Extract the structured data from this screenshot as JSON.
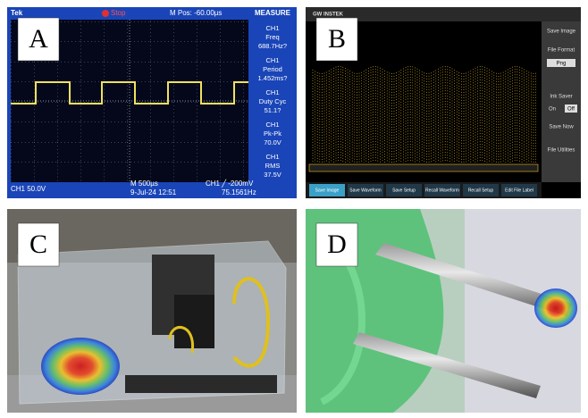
{
  "panels": [
    {
      "label": "A",
      "scope": {
        "brand": "Tek",
        "status": "Stop",
        "position": "M Pos: -60.00µs",
        "menu": "MEASURE",
        "measurements": [
          {
            "channel": "CH1",
            "name": "Freq",
            "value": "688.7Hz?"
          },
          {
            "channel": "CH1",
            "name": "Period",
            "value": "1.452ms?"
          },
          {
            "channel": "CH1",
            "name": "Duty Cyc",
            "value": "51.1?"
          },
          {
            "channel": "CH1",
            "name": "Pk-Pk",
            "value": "70.0V"
          },
          {
            "channel": "CH1",
            "name": "RMS",
            "value": "37.5V"
          }
        ],
        "footer": [
          "CH1 50.0V",
          "M 500µs",
          "9-Jul-24 12:51",
          "CH1 ╱ -200mV",
          "75.1561Hz"
        ]
      }
    },
    {
      "label": "B",
      "scope": {
        "brand": "GW INSTEK",
        "menu": [
          "Save Image",
          "File Format",
          "Png",
          "Ink Saver",
          "On",
          "Off",
          "Save Now",
          "File Utilities"
        ],
        "buttons": [
          "Save Image",
          "Save Waveform",
          "Save Setup",
          "Recall Waveform",
          "Recall Setup",
          "Edit File Label"
        ]
      }
    },
    {
      "label": "C"
    },
    {
      "label": "D"
    }
  ]
}
